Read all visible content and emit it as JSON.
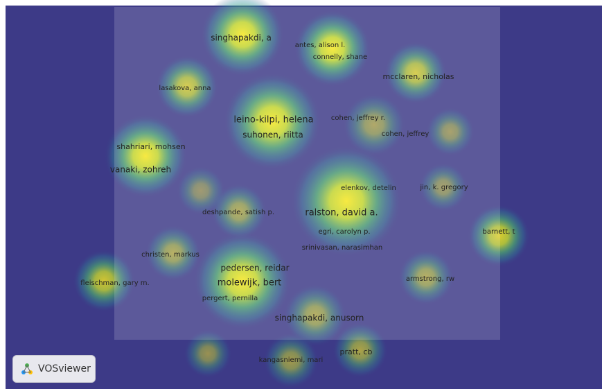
{
  "nodes": [
    {
      "label": "singhapakdi, a"
    },
    {
      "label": "antes, alison l."
    },
    {
      "label": "connelly, shane"
    },
    {
      "label": "mcclaren, nicholas"
    },
    {
      "label": "lasakova, anna"
    },
    {
      "label": "leino-kilpi, helena"
    },
    {
      "label": "suhonen, riitta"
    },
    {
      "label": "cohen, jeffrey r."
    },
    {
      "label": "cohen, jeffrey"
    },
    {
      "label": "shahriari, mohsen"
    },
    {
      "label": "vanaki, zohreh"
    },
    {
      "label": "elenkov, detelin"
    },
    {
      "label": "jin, k. gregory"
    },
    {
      "label": "deshpande, satish p."
    },
    {
      "label": "ralston, david a."
    },
    {
      "label": "egri, carolyn p."
    },
    {
      "label": "srinivasan, narasimhan"
    },
    {
      "label": "barnett, t"
    },
    {
      "label": "christen, markus"
    },
    {
      "label": "pedersen, reidar"
    },
    {
      "label": "molewijk, bert"
    },
    {
      "label": "pergert, pernilla"
    },
    {
      "label": "fleischman, gary m."
    },
    {
      "label": "armstrong, rw"
    },
    {
      "label": "singhapakdi, anusorn"
    },
    {
      "label": "kangasniemi, mari"
    },
    {
      "label": "pratt, cb"
    }
  ],
  "logo": {
    "text": "VOSviewer"
  }
}
